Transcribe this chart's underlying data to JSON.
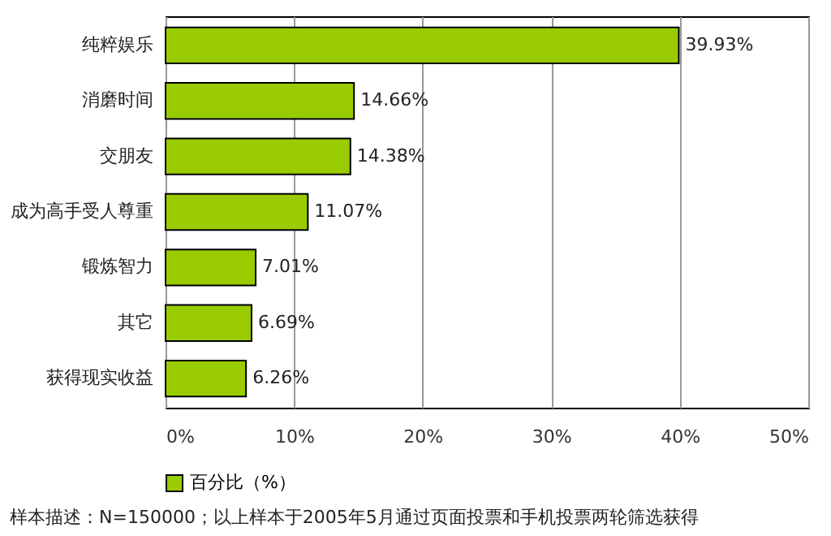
{
  "chart_data": {
    "type": "bar",
    "orientation": "horizontal",
    "categories": [
      "纯粹娱乐",
      "消磨时间",
      "交朋友",
      "成为高手受人尊重",
      "锻炼智力",
      "其它",
      "获得现实收益"
    ],
    "series": [
      {
        "name": "百分比（%）",
        "color": "#99cc00",
        "values": [
          39.93,
          14.66,
          14.38,
          11.07,
          7.01,
          6.69,
          6.26
        ],
        "value_labels": [
          "39.93%",
          "14.66%",
          "14.38%",
          "11.07%",
          "7.01%",
          "6.69%",
          "6.26%"
        ]
      }
    ],
    "xlim": [
      0,
      50
    ],
    "xticks": [
      {
        "value": 0,
        "label": "0%"
      },
      {
        "value": 10,
        "label": "10%"
      },
      {
        "value": 20,
        "label": "20%"
      },
      {
        "value": 30,
        "label": "30%"
      },
      {
        "value": 40,
        "label": "40%"
      },
      {
        "value": 50,
        "label": "50%"
      }
    ],
    "grid": "x",
    "legend": "bottom",
    "annotations": [
      "样本描述：N=150000；以上样本于2005年5月通过页面投票和手机投票两轮筛选获得"
    ]
  }
}
